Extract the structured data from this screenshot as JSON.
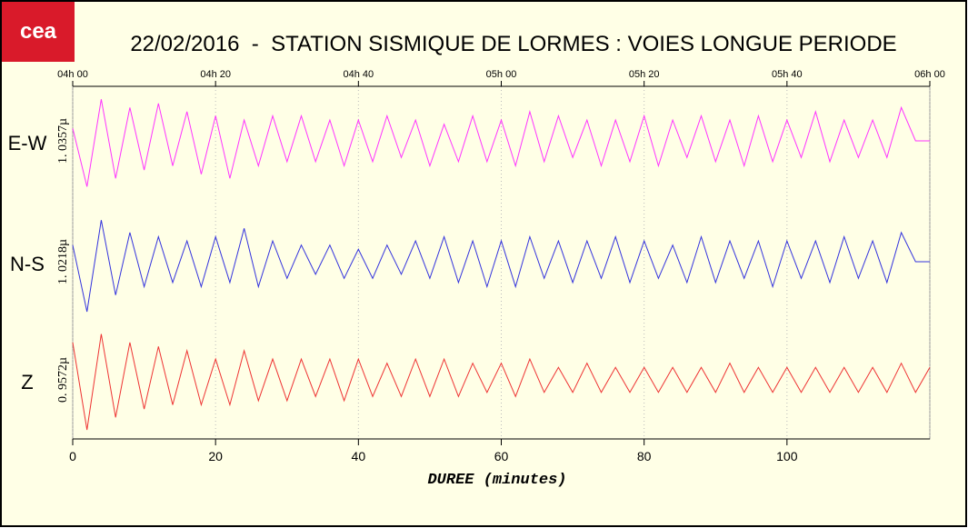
{
  "chart_data": {
    "type": "line",
    "logo": "cea",
    "title": "22/02/2016  -  STATION SISMIQUE DE LORMES : VOIES LONGUE PERIODE",
    "x_label": "DUREE (minutes)",
    "xlim": [
      0,
      120
    ],
    "xticks": [
      0,
      20,
      40,
      60,
      80,
      100
    ],
    "top_ticks": [
      {
        "value": 0,
        "label": "04h 00"
      },
      {
        "value": 20,
        "label": "04h 20"
      },
      {
        "value": 40,
        "label": "04h 40"
      },
      {
        "value": 60,
        "label": "05h 00"
      },
      {
        "value": 80,
        "label": "05h 20"
      },
      {
        "value": 100,
        "label": "05h 40"
      },
      {
        "value": 120,
        "label": "06h 00"
      }
    ],
    "ylim": [
      -1.2,
      1.2
    ],
    "grid": true,
    "x": [
      0,
      2,
      4,
      6,
      8,
      10,
      12,
      14,
      16,
      18,
      20,
      22,
      24,
      26,
      28,
      30,
      32,
      34,
      36,
      38,
      40,
      42,
      44,
      46,
      48,
      50,
      52,
      54,
      56,
      58,
      60,
      62,
      64,
      66,
      68,
      70,
      72,
      74,
      76,
      78,
      80,
      82,
      84,
      86,
      88,
      90,
      92,
      94,
      96,
      98,
      100,
      102,
      104,
      106,
      108,
      110,
      112,
      114,
      116,
      118,
      120
    ],
    "series": [
      {
        "name": "E-W",
        "scale_label": "1. 0357µ",
        "color": "#ff33ff",
        "values": [
          0.3,
          -1.1,
          1.0,
          -0.9,
          0.8,
          -0.7,
          0.9,
          -0.6,
          0.7,
          -0.8,
          0.6,
          -0.9,
          0.5,
          -0.6,
          0.6,
          -0.5,
          0.6,
          -0.5,
          0.5,
          -0.6,
          0.5,
          -0.5,
          0.6,
          -0.4,
          0.5,
          -0.6,
          0.4,
          -0.5,
          0.6,
          -0.5,
          0.5,
          -0.6,
          0.7,
          -0.5,
          0.6,
          -0.4,
          0.5,
          -0.6,
          0.5,
          -0.5,
          0.6,
          -0.6,
          0.5,
          -0.4,
          0.6,
          -0.5,
          0.5,
          -0.6,
          0.6,
          -0.5,
          0.5,
          -0.4,
          0.7,
          -0.5,
          0.5,
          -0.4,
          0.5,
          -0.4,
          0.8,
          0,
          0
        ]
      },
      {
        "name": "N-S",
        "scale_label": "1. 0218µ",
        "color": "#3333dd",
        "values": [
          0.4,
          -1.2,
          1.0,
          -0.8,
          0.7,
          -0.6,
          0.6,
          -0.5,
          0.5,
          -0.6,
          0.6,
          -0.5,
          0.8,
          -0.6,
          0.5,
          -0.4,
          0.4,
          -0.3,
          0.4,
          -0.4,
          0.3,
          -0.4,
          0.4,
          -0.3,
          0.5,
          -0.4,
          0.6,
          -0.5,
          0.5,
          -0.6,
          0.5,
          -0.6,
          0.6,
          -0.4,
          0.5,
          -0.5,
          0.5,
          -0.4,
          0.6,
          -0.5,
          0.5,
          -0.4,
          0.4,
          -0.5,
          0.6,
          -0.5,
          0.5,
          -0.4,
          0.5,
          -0.6,
          0.5,
          -0.4,
          0.5,
          -0.5,
          0.6,
          -0.4,
          0.5,
          -0.5,
          0.7,
          0,
          0
        ]
      },
      {
        "name": "Z",
        "scale_label": "0. 9572µ",
        "color": "#ee3333",
        "values": [
          0.9,
          -1.2,
          1.1,
          -0.9,
          0.9,
          -0.7,
          0.8,
          -0.6,
          0.7,
          -0.6,
          0.5,
          -0.6,
          0.7,
          -0.5,
          0.5,
          -0.5,
          0.5,
          -0.4,
          0.5,
          -0.5,
          0.5,
          -0.4,
          0.4,
          -0.4,
          0.5,
          -0.4,
          0.5,
          -0.4,
          0.4,
          -0.3,
          0.4,
          -0.4,
          0.5,
          -0.3,
          0.3,
          -0.3,
          0.4,
          -0.3,
          0.3,
          -0.3,
          0.3,
          -0.3,
          0.3,
          -0.3,
          0.3,
          -0.3,
          0.4,
          -0.3,
          0.3,
          -0.3,
          0.3,
          -0.3,
          0.3,
          -0.3,
          0.3,
          -0.3,
          0.3,
          -0.3,
          0.4,
          -0.3,
          0.3
        ]
      }
    ]
  }
}
